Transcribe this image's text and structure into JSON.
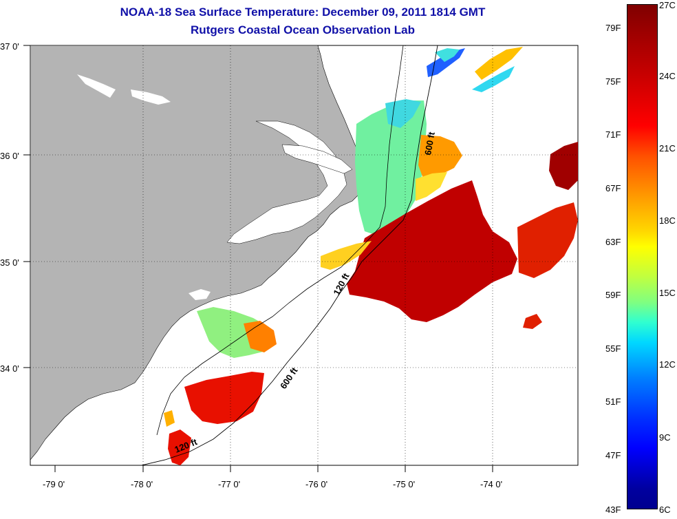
{
  "title": "NOAA-18 Sea Surface Temperature:  December 09, 2011 1814 GMT",
  "subtitle": "Rutgers Coastal Ocean Observation Lab",
  "map": {
    "lon_ticks": [
      "-79 0'",
      "-78 0'",
      "-77 0'",
      "-76 0'",
      "-75 0'",
      "-74 0'"
    ],
    "lat_ticks": [
      "37 0'",
      "36 0'",
      "35 0'",
      "34 0'"
    ],
    "contours": [
      "600 ft",
      "120 ft",
      "600 ft",
      "120 ft"
    ],
    "colors": {
      "land": "#b4b4b4",
      "ocean_bg": "#ffffff",
      "gridline": "#000000"
    }
  },
  "colorbar": {
    "fahrenheit_labels": [
      "79F",
      "75F",
      "71F",
      "67F",
      "63F",
      "59F",
      "55F",
      "51F",
      "47F",
      "43F"
    ],
    "celsius_labels": [
      "27C",
      "24C",
      "21C",
      "18C",
      "15C",
      "12C",
      "9C",
      "6C"
    ]
  }
}
